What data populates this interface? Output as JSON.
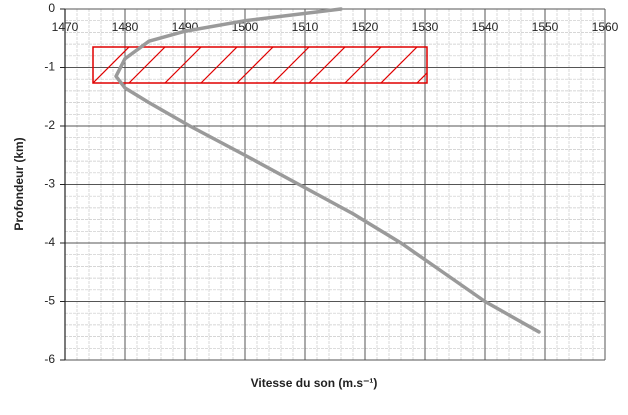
{
  "chart_data": {
    "type": "line",
    "x_label": "Vitesse du son (m.s⁻¹)",
    "y_label": "Profondeur (km)",
    "x": [
      1516,
      1500,
      1490,
      1484,
      1480,
      1478.5,
      1480,
      1484,
      1490.8,
      1500,
      1509,
      1518,
      1526,
      1533,
      1540,
      1549
    ],
    "values": [
      0,
      -0.2,
      -0.38,
      -0.55,
      -0.85,
      -1.15,
      -1.35,
      -1.6,
      -2,
      -2.5,
      -3,
      -3.5,
      -4,
      -4.5,
      -5,
      -5.52
    ],
    "color": "#9a9a9a",
    "xlim": [
      1470,
      1560
    ],
    "xticks": [
      1470,
      1480,
      1490,
      1500,
      1510,
      1520,
      1530,
      1540,
      1550,
      1560
    ],
    "ylim": [
      -6,
      0
    ],
    "yticks": [
      0,
      -1,
      -2,
      -3,
      -4,
      -5,
      -6
    ],
    "grid": true,
    "minor_grid": true
  }
}
